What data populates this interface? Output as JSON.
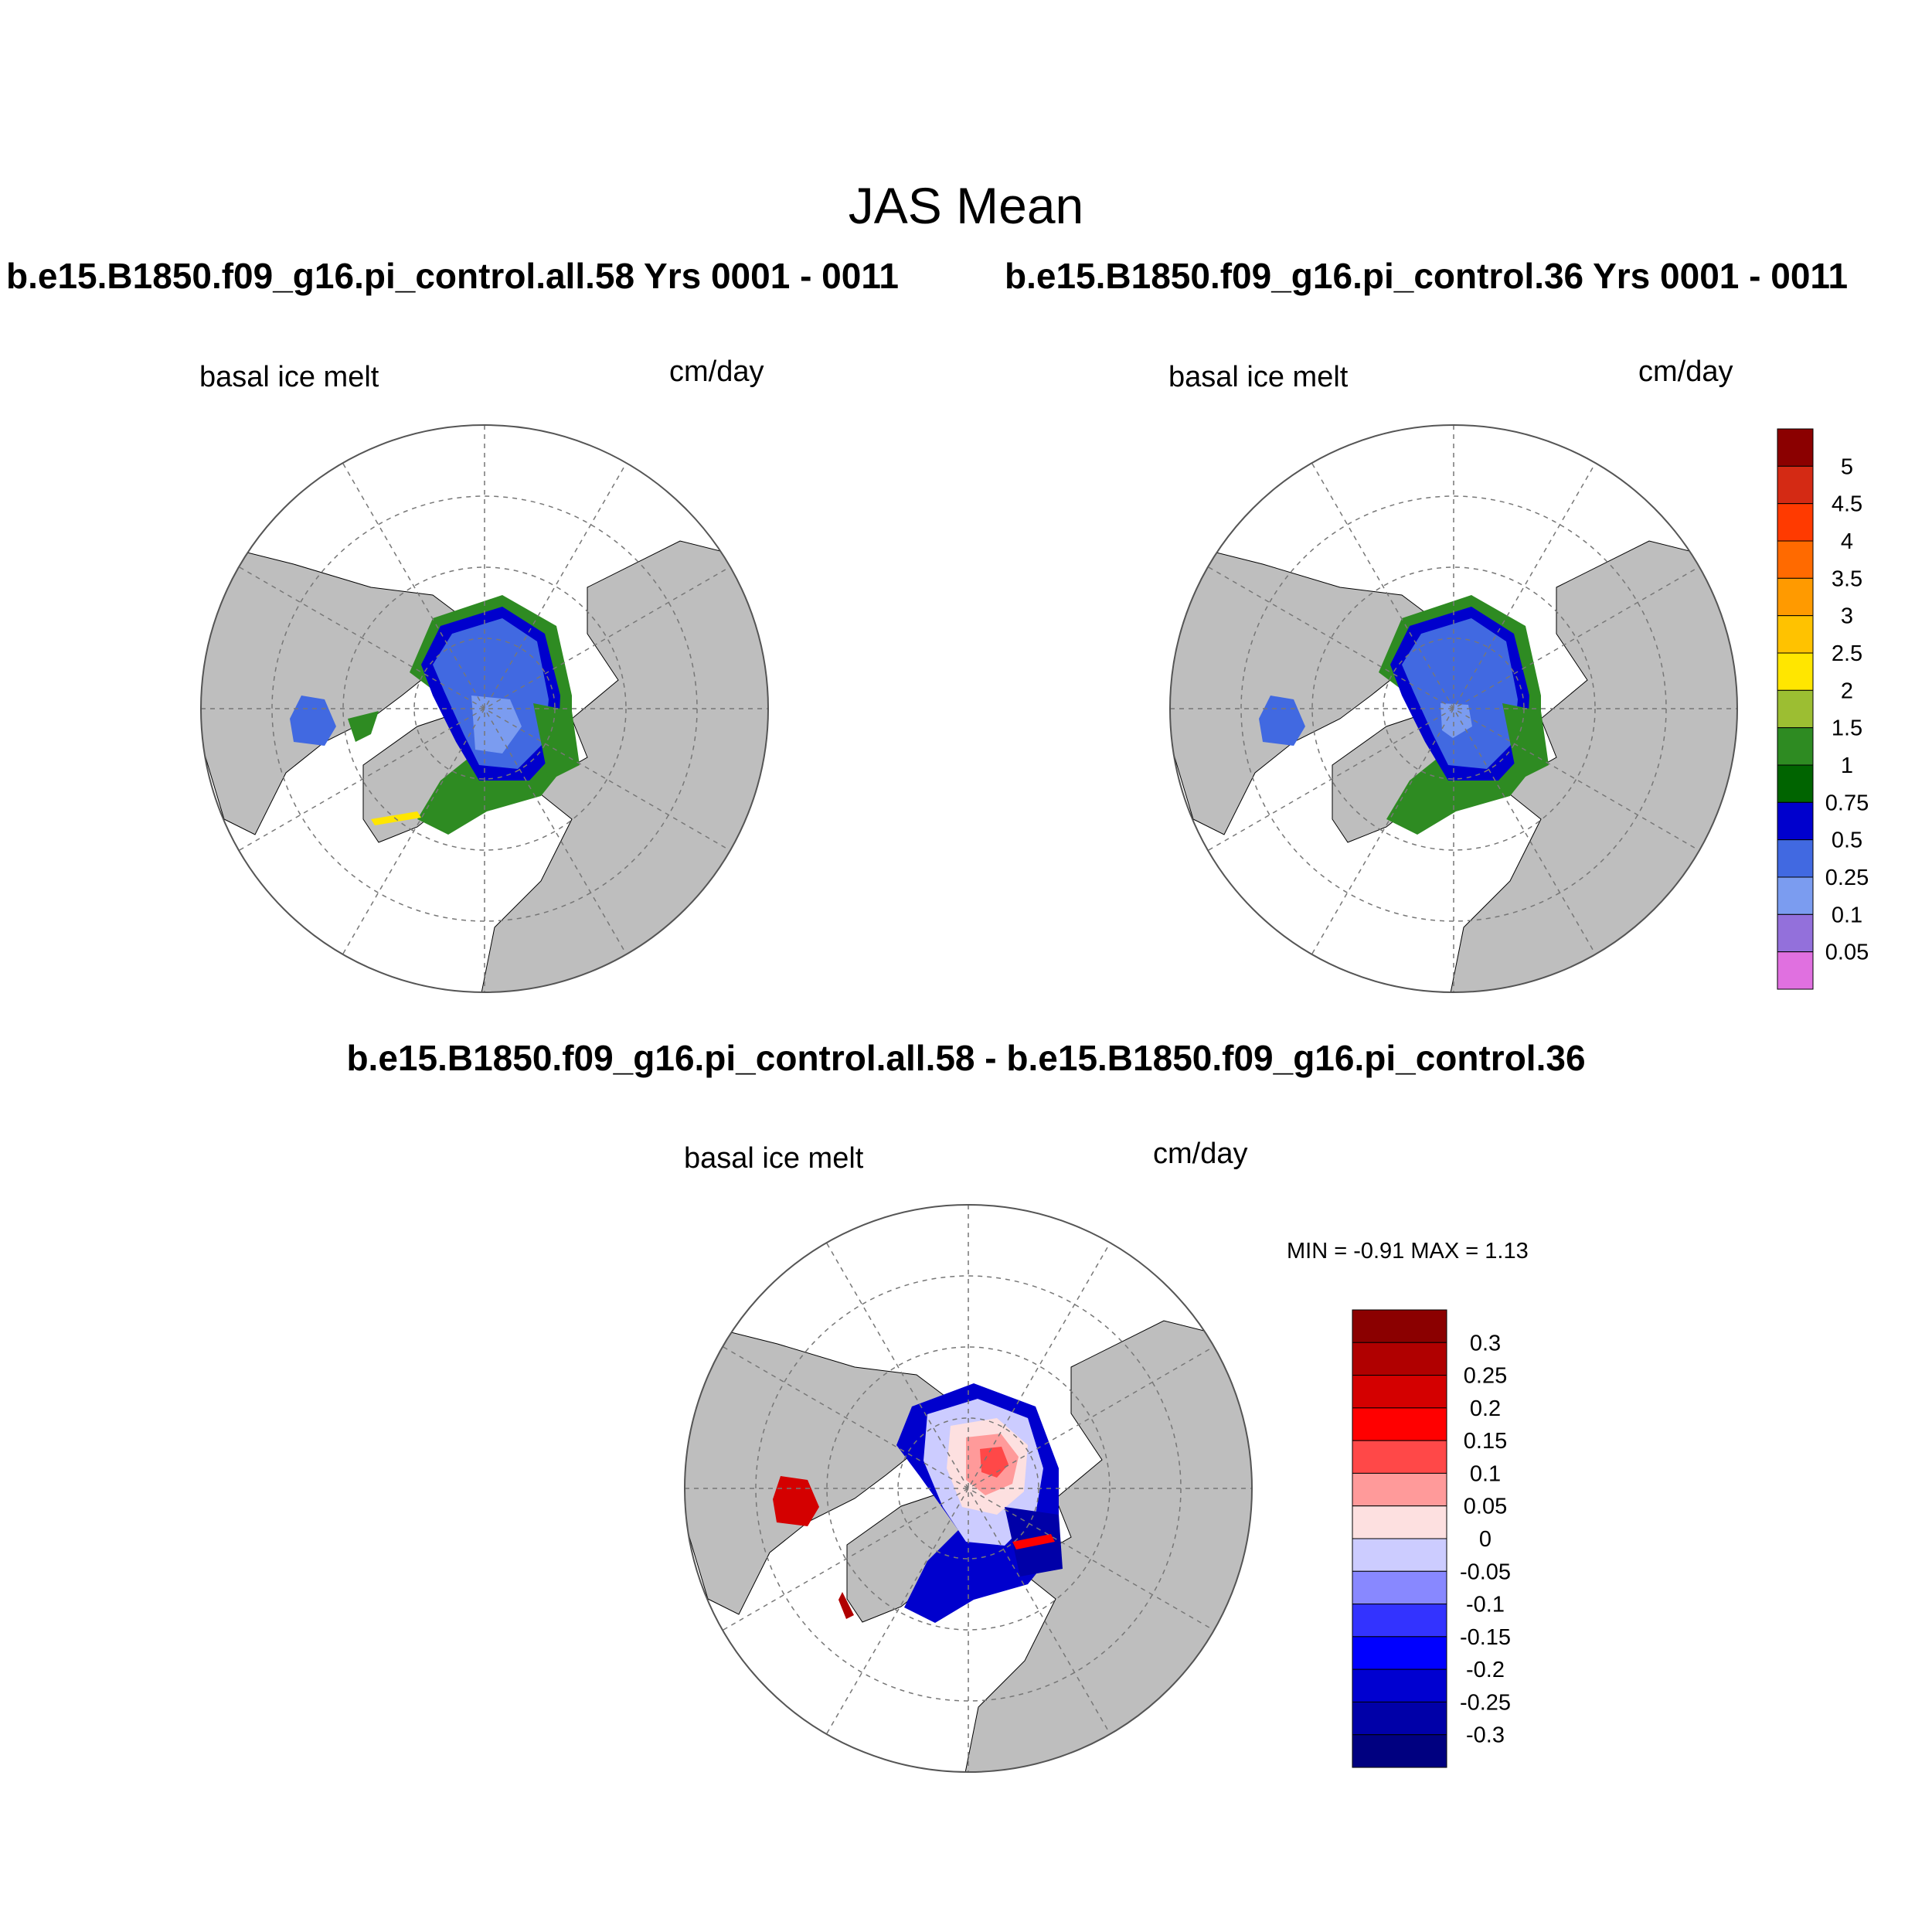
{
  "main_title": "JAS Mean",
  "panels": [
    {
      "title": "b.e15.B1850.f09_g16.pi_control.all.58  Yrs 0001 - 0011",
      "variable": "basal ice melt",
      "units": "cm/day"
    },
    {
      "title": "b.e15.B1850.f09_g16.pi_control.36  Yrs 0001 - 0011",
      "variable": "basal ice melt",
      "units": "cm/day"
    },
    {
      "title": "b.e15.B1850.f09_g16.pi_control.all.58 - b.e15.B1850.f09_g16.pi_control.36",
      "variable": "basal ice melt",
      "units": "cm/day",
      "minmax": "MIN =  -0.91 MAX =   1.13"
    }
  ],
  "colorbar_main": {
    "labels": [
      "5",
      "4.5",
      "4",
      "3.5",
      "3",
      "2.5",
      "2",
      "1.5",
      "1",
      "0.75",
      "0.5",
      "0.25",
      "0.1",
      "0.05"
    ],
    "colors": [
      "#8b0000",
      "#d42a14",
      "#ff3a00",
      "#ff6a00",
      "#ff9a00",
      "#ffc200",
      "#ffe600",
      "#9cbe32",
      "#2e8b22",
      "#006400",
      "#0000cd",
      "#4169e1",
      "#7b9cf0",
      "#9370db",
      "#e070e0"
    ]
  },
  "colorbar_diff": {
    "labels": [
      "0.3",
      "0.25",
      "0.2",
      "0.15",
      "0.1",
      "0.05",
      "0",
      "-0.05",
      "-0.1",
      "-0.15",
      "-0.2",
      "-0.25",
      "-0.3"
    ],
    "colors": [
      "#8b0000",
      "#b00000",
      "#d40000",
      "#ff0000",
      "#ff4848",
      "#ff9a9a",
      "#fde0e0",
      "#ccccff",
      "#8888ff",
      "#3333ff",
      "#0000ff",
      "#0000d0",
      "#0000a8",
      "#000080"
    ]
  },
  "map_colors": {
    "land": "#bebebe",
    "ocean": "#ffffff"
  }
}
